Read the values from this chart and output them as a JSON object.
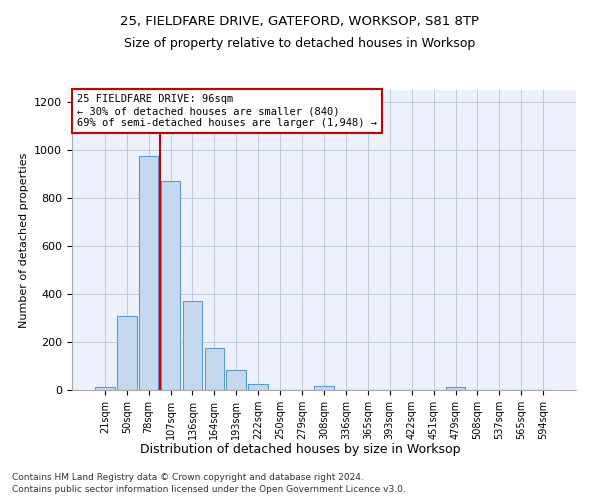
{
  "title1": "25, FIELDFARE DRIVE, GATEFORD, WORKSOP, S81 8TP",
  "title2": "Size of property relative to detached houses in Worksop",
  "xlabel": "Distribution of detached houses by size in Worksop",
  "ylabel": "Number of detached properties",
  "bar_labels": [
    "21sqm",
    "50sqm",
    "78sqm",
    "107sqm",
    "136sqm",
    "164sqm",
    "193sqm",
    "222sqm",
    "250sqm",
    "279sqm",
    "308sqm",
    "336sqm",
    "365sqm",
    "393sqm",
    "422sqm",
    "451sqm",
    "479sqm",
    "508sqm",
    "537sqm",
    "565sqm",
    "594sqm"
  ],
  "bar_values": [
    13,
    310,
    975,
    870,
    370,
    175,
    85,
    25,
    0,
    0,
    15,
    0,
    0,
    0,
    0,
    0,
    13,
    0,
    0,
    0,
    0
  ],
  "bar_color": "#c5d8f0",
  "bar_edge_color": "#5b9bd5",
  "highlight_color": "#cc0000",
  "annotation_line1": "25 FIELDFARE DRIVE: 96sqm",
  "annotation_line2": "← 30% of detached houses are smaller (840)",
  "annotation_line3": "69% of semi-detached houses are larger (1,948) →",
  "annotation_box_color": "#cc0000",
  "ylim": [
    0,
    1250
  ],
  "yticks": [
    0,
    200,
    400,
    600,
    800,
    1000,
    1200
  ],
  "footer1": "Contains HM Land Registry data © Crown copyright and database right 2024.",
  "footer2": "Contains public sector information licensed under the Open Government Licence v3.0.",
  "bg_color": "#edf1fb",
  "grid_color": "#c0c8e0"
}
